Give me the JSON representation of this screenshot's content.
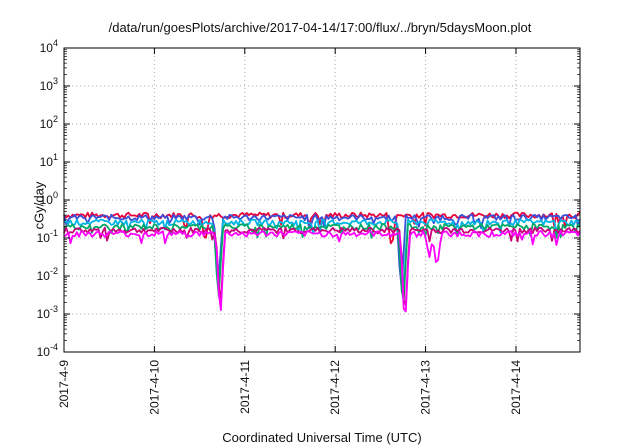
{
  "chart_data": {
    "type": "line",
    "title": "/data/run/goesPlots/archive/2017-04-14/17:00/flux/../bryn/5daysMoon.plot",
    "xlabel": "Coordinated Universal Time (UTC)",
    "ylabel": "cGy/day",
    "yscale": "log",
    "ylim": [
      0.0001,
      10000
    ],
    "xlim": [
      "2017-04-09 00:00",
      "2017-04-14 17:00"
    ],
    "grid": true,
    "legend": "none",
    "y_ticks": [
      {
        "value": 0.0001,
        "base": "10",
        "exp": "-4"
      },
      {
        "value": 0.001,
        "base": "10",
        "exp": "-3"
      },
      {
        "value": 0.01,
        "base": "10",
        "exp": "-2"
      },
      {
        "value": 0.1,
        "base": "10",
        "exp": "-1"
      },
      {
        "value": 1,
        "base": "10",
        "exp": "0"
      },
      {
        "value": 10,
        "base": "10",
        "exp": "1"
      },
      {
        "value": 100,
        "base": "10",
        "exp": "2"
      },
      {
        "value": 1000,
        "base": "10",
        "exp": "3"
      },
      {
        "value": 10000,
        "base": "10",
        "exp": "4"
      }
    ],
    "x_ticks": [
      "2017-4-9",
      "2017-4-10",
      "2017-4-11",
      "2017-4-12",
      "2017-4-13",
      "2017-4-14"
    ],
    "series": [
      {
        "color": "#e8003a",
        "baseline": 0.4,
        "dips": [
          {
            "x": "2017-04-10 13:30",
            "y": 0.08
          },
          {
            "x": "2017-04-12 15:00",
            "y": 0.05
          }
        ]
      },
      {
        "color": "#3a4fd8",
        "baseline": 0.35,
        "dips": [
          {
            "x": "2017-04-10 17:00",
            "y": 0.007
          },
          {
            "x": "2017-04-12 17:30",
            "y": 0.003
          }
        ]
      },
      {
        "color": "#00b3e6",
        "baseline": 0.26,
        "dips": [
          {
            "x": "2017-04-10 17:00",
            "y": 0.004
          },
          {
            "x": "2017-04-12 18:00",
            "y": 0.002
          }
        ]
      },
      {
        "color": "#00a866",
        "baseline": 0.2,
        "dips": [
          {
            "x": "2017-04-10 17:00",
            "y": 0.002
          },
          {
            "x": "2017-04-12 18:00",
            "y": 0.0009
          }
        ]
      },
      {
        "color": "#c8007a",
        "baseline": 0.16,
        "dips": [
          {
            "x": "2017-04-10 17:30",
            "y": 0.001
          },
          {
            "x": "2017-04-12 18:30",
            "y": 0.0005
          }
        ]
      },
      {
        "color": "#ff00ff",
        "baseline": 0.13,
        "dips": [
          {
            "x": "2017-04-10 17:30",
            "y": 0.0006
          },
          {
            "x": "2017-04-12 18:30",
            "y": 0.0003
          },
          {
            "x": "2017-04-13 01:00",
            "y": 0.03
          },
          {
            "x": "2017-04-13 03:00",
            "y": 0.015
          }
        ]
      }
    ]
  }
}
